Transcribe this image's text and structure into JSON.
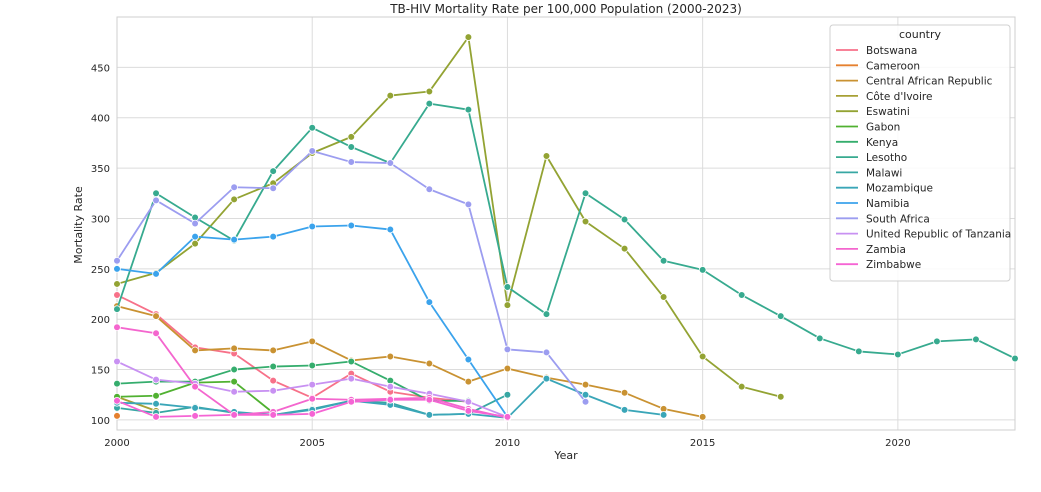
{
  "chart_data": {
    "type": "line",
    "title": "TB-HIV Mortality Rate per 100,000 Population (2000-2023)",
    "xlabel": "Year",
    "ylabel": "Mortality Rate",
    "xlim": [
      2000,
      2023
    ],
    "ylim": [
      90,
      500
    ],
    "xticks": [
      2000,
      2005,
      2010,
      2015,
      2020
    ],
    "yticks": [
      100,
      150,
      200,
      250,
      300,
      350,
      400,
      450
    ],
    "grid": true,
    "legend": {
      "title": "country",
      "placement": "top-right"
    },
    "series": [
      {
        "name": "Botswana",
        "color": "#f77189",
        "points": [
          [
            2000,
            224
          ],
          [
            2001,
            205
          ],
          [
            2002,
            172
          ],
          [
            2003,
            166
          ],
          [
            2004,
            139
          ],
          [
            2005,
            122
          ],
          [
            2006,
            146
          ],
          [
            2007,
            128
          ],
          [
            2008,
            122
          ],
          [
            2009,
            118
          ]
        ]
      },
      {
        "name": "Cameroon",
        "color": "#e5802f",
        "points": [
          [
            2000,
            104
          ]
        ]
      },
      {
        "name": "Central African Republic",
        "color": "#c99232",
        "points": [
          [
            2000,
            213
          ],
          [
            2001,
            203
          ],
          [
            2002,
            169
          ],
          [
            2003,
            171
          ],
          [
            2004,
            169
          ],
          [
            2005,
            178
          ],
          [
            2006,
            159
          ],
          [
            2007,
            163
          ],
          [
            2008,
            156
          ],
          [
            2009,
            138
          ],
          [
            2010,
            151
          ],
          [
            2011,
            142
          ],
          [
            2012,
            135
          ],
          [
            2013,
            127
          ],
          [
            2014,
            111
          ],
          [
            2015,
            103
          ]
        ]
      },
      {
        "name": "Côte d'Ivoire",
        "color": "#a7a035",
        "points": [
          [
            2000,
            123
          ],
          [
            2001,
            109
          ]
        ]
      },
      {
        "name": "Eswatini",
        "color": "#93a333",
        "points": [
          [
            2000,
            235
          ],
          [
            2001,
            246
          ],
          [
            2002,
            275
          ],
          [
            2003,
            319
          ],
          [
            2004,
            335
          ],
          [
            2005,
            365
          ],
          [
            2006,
            381
          ],
          [
            2007,
            422
          ],
          [
            2008,
            426
          ],
          [
            2009,
            480
          ],
          [
            2010,
            214
          ],
          [
            2011,
            362
          ],
          [
            2012,
            297
          ],
          [
            2013,
            270
          ],
          [
            2014,
            222
          ],
          [
            2015,
            163
          ],
          [
            2016,
            133
          ],
          [
            2017,
            123
          ]
        ]
      },
      {
        "name": "Gabon",
        "color": "#50b131",
        "points": [
          [
            2000,
            123
          ],
          [
            2001,
            124
          ],
          [
            2002,
            137
          ],
          [
            2003,
            138
          ],
          [
            2004,
            107
          ]
        ]
      },
      {
        "name": "Kenya",
        "color": "#35ad6d",
        "points": [
          [
            2000,
            136
          ],
          [
            2001,
            138
          ],
          [
            2002,
            138
          ],
          [
            2003,
            150
          ],
          [
            2004,
            153
          ],
          [
            2005,
            154
          ],
          [
            2006,
            158
          ],
          [
            2007,
            139
          ],
          [
            2008,
            119
          ],
          [
            2009,
            119
          ]
        ]
      },
      {
        "name": "Lesotho",
        "color": "#37aa8f",
        "points": [
          [
            2000,
            210
          ],
          [
            2001,
            325
          ],
          [
            2002,
            301
          ],
          [
            2003,
            278
          ],
          [
            2004,
            347
          ],
          [
            2005,
            390
          ],
          [
            2006,
            371
          ],
          [
            2007,
            355
          ],
          [
            2008,
            414
          ],
          [
            2009,
            408
          ],
          [
            2010,
            232
          ],
          [
            2011,
            205
          ],
          [
            2012,
            325
          ],
          [
            2013,
            299
          ],
          [
            2014,
            258
          ],
          [
            2015,
            249
          ],
          [
            2016,
            224
          ],
          [
            2017,
            203
          ],
          [
            2018,
            181
          ],
          [
            2019,
            168
          ],
          [
            2020,
            165
          ],
          [
            2021,
            178
          ],
          [
            2022,
            180
          ],
          [
            2023,
            161
          ]
        ]
      },
      {
        "name": "Malawi",
        "color": "#37a7a3",
        "points": [
          [
            2000,
            112
          ],
          [
            2001,
            107
          ],
          [
            2002,
            113
          ],
          [
            2003,
            107
          ],
          [
            2004,
            105
          ],
          [
            2005,
            111
          ],
          [
            2006,
            119
          ],
          [
            2007,
            117
          ],
          [
            2008,
            105
          ],
          [
            2009,
            106
          ],
          [
            2010,
            125
          ]
        ]
      },
      {
        "name": "Mozambique",
        "color": "#3aa6b8",
        "points": [
          [
            2000,
            117
          ],
          [
            2001,
            116
          ],
          [
            2002,
            112
          ],
          [
            2003,
            108
          ],
          [
            2004,
            105
          ],
          [
            2005,
            110
          ],
          [
            2006,
            119
          ],
          [
            2007,
            115
          ],
          [
            2008,
            105
          ],
          [
            2009,
            106
          ],
          [
            2010,
            102
          ],
          [
            2011,
            141
          ],
          [
            2012,
            125
          ],
          [
            2013,
            110
          ],
          [
            2014,
            105
          ]
        ]
      },
      {
        "name": "Namibia",
        "color": "#3ba3ec",
        "points": [
          [
            2000,
            250
          ],
          [
            2001,
            245
          ],
          [
            2002,
            282
          ],
          [
            2003,
            279
          ],
          [
            2004,
            282
          ],
          [
            2005,
            292
          ],
          [
            2006,
            293
          ],
          [
            2007,
            289
          ],
          [
            2008,
            217
          ],
          [
            2009,
            160
          ],
          [
            2010,
            103
          ]
        ]
      },
      {
        "name": "South Africa",
        "color": "#9c9df0",
        "points": [
          [
            2000,
            258
          ],
          [
            2001,
            318
          ],
          [
            2002,
            295
          ],
          [
            2003,
            331
          ],
          [
            2004,
            330
          ],
          [
            2005,
            367
          ],
          [
            2006,
            356
          ],
          [
            2007,
            355
          ],
          [
            2008,
            329
          ],
          [
            2009,
            314
          ],
          [
            2010,
            170
          ],
          [
            2011,
            167
          ],
          [
            2012,
            118
          ]
        ]
      },
      {
        "name": "United Republic of Tanzania",
        "color": "#c891f2",
        "points": [
          [
            2000,
            158
          ],
          [
            2001,
            140
          ],
          [
            2002,
            136
          ],
          [
            2003,
            128
          ],
          [
            2004,
            129
          ],
          [
            2005,
            135
          ],
          [
            2006,
            141
          ],
          [
            2007,
            133
          ],
          [
            2008,
            126
          ],
          [
            2009,
            118
          ],
          [
            2010,
            103
          ]
        ]
      },
      {
        "name": "Zambia",
        "color": "#f466ce",
        "points": [
          [
            2000,
            192
          ],
          [
            2001,
            186
          ],
          [
            2002,
            133
          ],
          [
            2003,
            105
          ],
          [
            2004,
            108
          ],
          [
            2005,
            121
          ],
          [
            2006,
            120
          ],
          [
            2007,
            121
          ],
          [
            2008,
            122
          ],
          [
            2009,
            111
          ],
          [
            2010,
            102
          ]
        ]
      },
      {
        "name": "Zimbabwe",
        "color": "#f564d4",
        "points": [
          [
            2000,
            119
          ],
          [
            2001,
            103
          ],
          [
            2002,
            104
          ],
          [
            2003,
            105
          ],
          [
            2004,
            105
          ],
          [
            2005,
            106
          ],
          [
            2006,
            118
          ],
          [
            2007,
            120
          ],
          [
            2008,
            120
          ],
          [
            2009,
            109
          ],
          [
            2010,
            103
          ]
        ]
      }
    ]
  }
}
